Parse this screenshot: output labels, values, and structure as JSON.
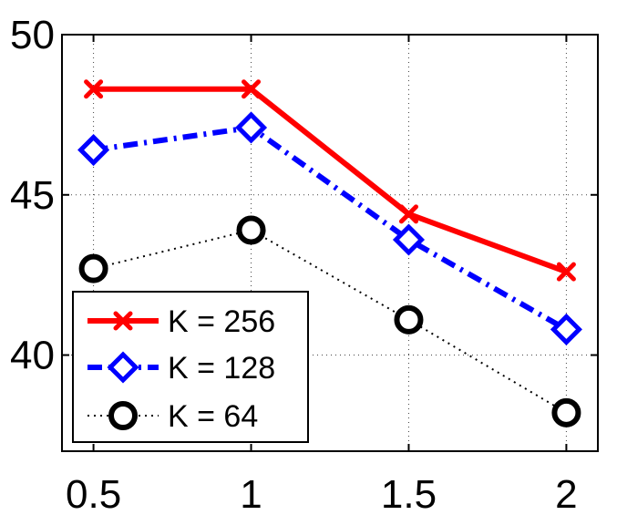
{
  "chart_data": {
    "type": "line",
    "title": "",
    "xlabel": "",
    "ylabel": "",
    "x": [
      0.5,
      1,
      1.5,
      2
    ],
    "xlim": [
      0.4,
      2.1
    ],
    "ylim": [
      37,
      50
    ],
    "xticks": [
      0.5,
      1,
      1.5,
      2
    ],
    "xtick_labels": [
      "0.5",
      "1",
      "1.5",
      "2"
    ],
    "yticks": [
      40,
      45,
      50
    ],
    "ytick_labels": [
      "40",
      "45",
      "50"
    ],
    "grid": true,
    "legend_position": "bottom-left",
    "series": [
      {
        "name": "K = 256",
        "values": [
          48.3,
          48.3,
          44.4,
          42.6
        ],
        "color": "#ff0000",
        "line_style": "solid",
        "marker": "x"
      },
      {
        "name": "K = 128",
        "values": [
          46.4,
          47.1,
          43.6,
          40.8
        ],
        "color": "#0000ff",
        "line_style": "dash-dot",
        "marker": "diamond"
      },
      {
        "name": "K = 64",
        "values": [
          42.7,
          43.9,
          41.1,
          38.2
        ],
        "color": "#000000",
        "line_style": "dotted",
        "marker": "circle"
      }
    ]
  }
}
